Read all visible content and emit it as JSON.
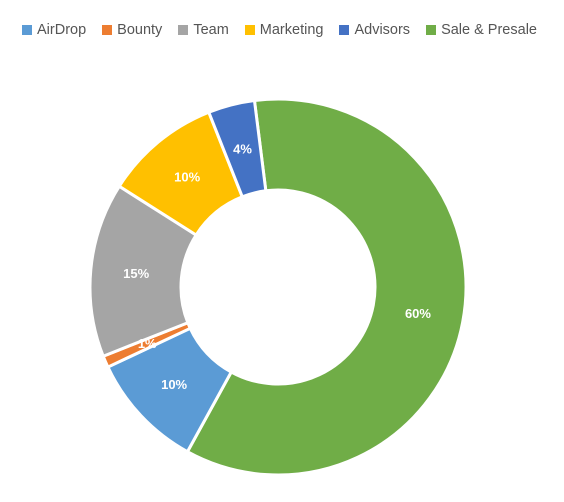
{
  "chart_data": {
    "type": "pie",
    "donut": true,
    "title": "",
    "legend_position": "top",
    "categories": [
      "AirDrop",
      "Bounty",
      "Team",
      "Marketing",
      "Advisors",
      "Sale & Presale"
    ],
    "values": [
      10,
      1,
      15,
      10,
      4,
      60
    ],
    "unit": "%",
    "data_labels": [
      "10%",
      "1%",
      "15%",
      "10%",
      "4%",
      "60%"
    ],
    "colors": [
      "#5b9bd5",
      "#ed7d31",
      "#a5a5a5",
      "#ffc000",
      "#4472c4",
      "#70ad47"
    ]
  }
}
